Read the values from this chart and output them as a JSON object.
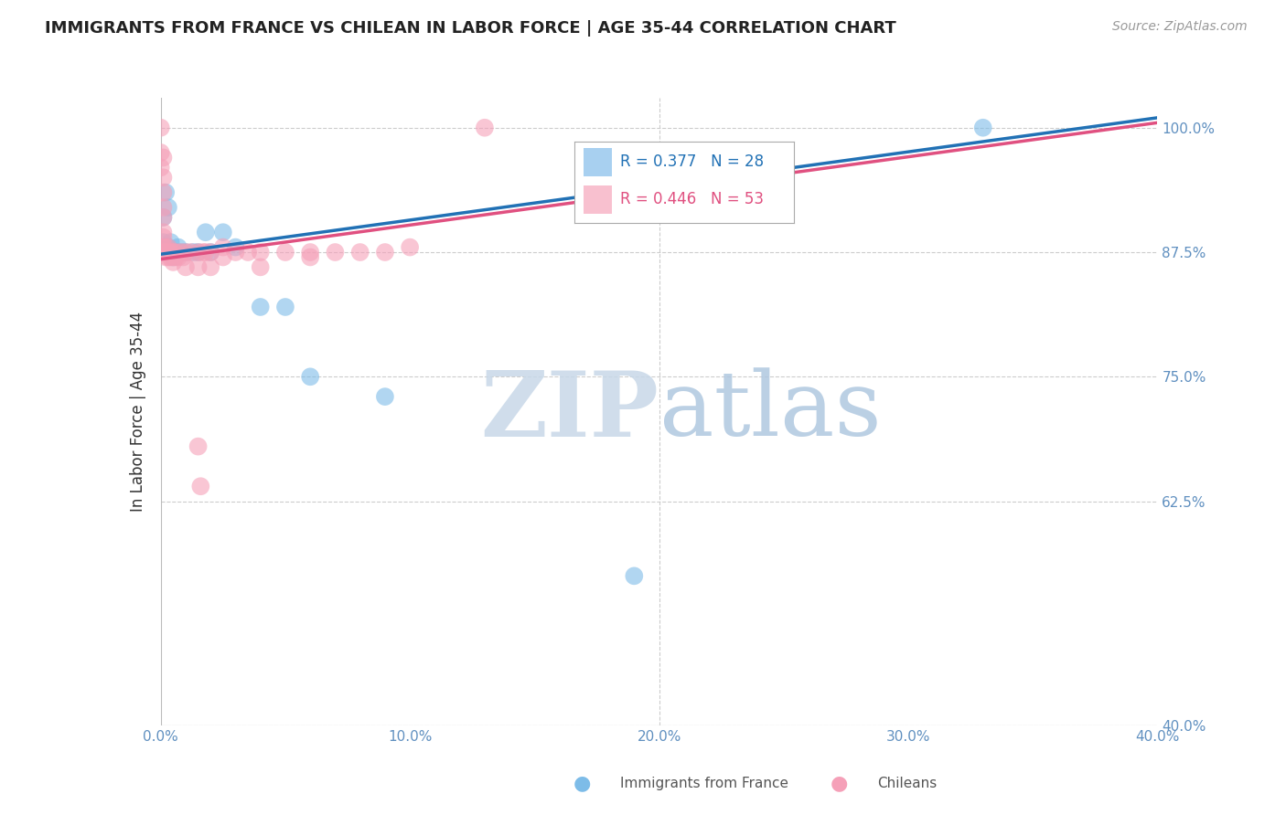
{
  "title": "IMMIGRANTS FROM FRANCE VS CHILEAN IN LABOR FORCE | AGE 35-44 CORRELATION CHART",
  "source": "Source: ZipAtlas.com",
  "ylabel": "In Labor Force | Age 35-44",
  "ytick_labels": [
    "100.0%",
    "87.5%",
    "75.0%",
    "62.5%",
    "40.0%"
  ],
  "ytick_values": [
    1.0,
    0.875,
    0.75,
    0.625,
    0.4
  ],
  "xlim": [
    0.0,
    0.4
  ],
  "ylim": [
    0.4,
    1.03
  ],
  "xtick_values": [
    0.0,
    0.1,
    0.2,
    0.3,
    0.4
  ],
  "xtick_labels": [
    "0.0%",
    "10.0%",
    "20.0%",
    "30.0%",
    "40.0%"
  ],
  "legend_box_colors": [
    "#a8d0f0",
    "#f8c0cf"
  ],
  "france_color": "#7dbce8",
  "chilean_color": "#f5a0b8",
  "france_R": 0.377,
  "france_N": 28,
  "chilean_R": 0.446,
  "chilean_N": 53,
  "france_scatter": [
    [
      0.0,
      0.875
    ],
    [
      0.001,
      0.91
    ],
    [
      0.001,
      0.885
    ],
    [
      0.002,
      0.935
    ],
    [
      0.002,
      0.88
    ],
    [
      0.003,
      0.92
    ],
    [
      0.003,
      0.88
    ],
    [
      0.003,
      0.875
    ],
    [
      0.004,
      0.885
    ],
    [
      0.004,
      0.875
    ],
    [
      0.005,
      0.875
    ],
    [
      0.005,
      0.87
    ],
    [
      0.006,
      0.875
    ],
    [
      0.007,
      0.88
    ],
    [
      0.008,
      0.875
    ],
    [
      0.01,
      0.875
    ],
    [
      0.013,
      0.875
    ],
    [
      0.015,
      0.875
    ],
    [
      0.018,
      0.895
    ],
    [
      0.02,
      0.875
    ],
    [
      0.025,
      0.895
    ],
    [
      0.03,
      0.88
    ],
    [
      0.04,
      0.82
    ],
    [
      0.05,
      0.82
    ],
    [
      0.06,
      0.75
    ],
    [
      0.09,
      0.73
    ],
    [
      0.19,
      0.55
    ],
    [
      0.33,
      1.0
    ]
  ],
  "chilean_scatter": [
    [
      0.0,
      1.0
    ],
    [
      0.0,
      0.975
    ],
    [
      0.0,
      0.96
    ],
    [
      0.001,
      0.97
    ],
    [
      0.001,
      0.95
    ],
    [
      0.001,
      0.935
    ],
    [
      0.001,
      0.92
    ],
    [
      0.001,
      0.91
    ],
    [
      0.001,
      0.895
    ],
    [
      0.001,
      0.89
    ],
    [
      0.001,
      0.88
    ],
    [
      0.001,
      0.875
    ],
    [
      0.002,
      0.88
    ],
    [
      0.002,
      0.875
    ],
    [
      0.002,
      0.87
    ],
    [
      0.003,
      0.88
    ],
    [
      0.003,
      0.875
    ],
    [
      0.003,
      0.87
    ],
    [
      0.004,
      0.875
    ],
    [
      0.004,
      0.87
    ],
    [
      0.005,
      0.875
    ],
    [
      0.005,
      0.87
    ],
    [
      0.005,
      0.865
    ],
    [
      0.006,
      0.875
    ],
    [
      0.006,
      0.87
    ],
    [
      0.007,
      0.87
    ],
    [
      0.008,
      0.875
    ],
    [
      0.009,
      0.87
    ],
    [
      0.01,
      0.875
    ],
    [
      0.01,
      0.86
    ],
    [
      0.012,
      0.875
    ],
    [
      0.015,
      0.875
    ],
    [
      0.015,
      0.86
    ],
    [
      0.015,
      0.68
    ],
    [
      0.016,
      0.64
    ],
    [
      0.017,
      0.875
    ],
    [
      0.018,
      0.875
    ],
    [
      0.02,
      0.875
    ],
    [
      0.02,
      0.86
    ],
    [
      0.025,
      0.88
    ],
    [
      0.025,
      0.87
    ],
    [
      0.03,
      0.875
    ],
    [
      0.035,
      0.875
    ],
    [
      0.04,
      0.875
    ],
    [
      0.04,
      0.86
    ],
    [
      0.05,
      0.875
    ],
    [
      0.06,
      0.875
    ],
    [
      0.06,
      0.87
    ],
    [
      0.07,
      0.875
    ],
    [
      0.08,
      0.875
    ],
    [
      0.09,
      0.875
    ],
    [
      0.1,
      0.88
    ],
    [
      0.13,
      1.0
    ]
  ],
  "france_line_color": "#2171b5",
  "chilean_line_color": "#e05080",
  "france_line": [
    0.0,
    0.873,
    0.4,
    1.01
  ],
  "chilean_line": [
    0.0,
    0.868,
    0.4,
    1.005
  ],
  "watermark_zip_color": "#c8d8e8",
  "watermark_atlas_color": "#b0c8e0",
  "background_color": "#ffffff",
  "grid_color": "#cccccc",
  "tick_color": "#6090c0"
}
